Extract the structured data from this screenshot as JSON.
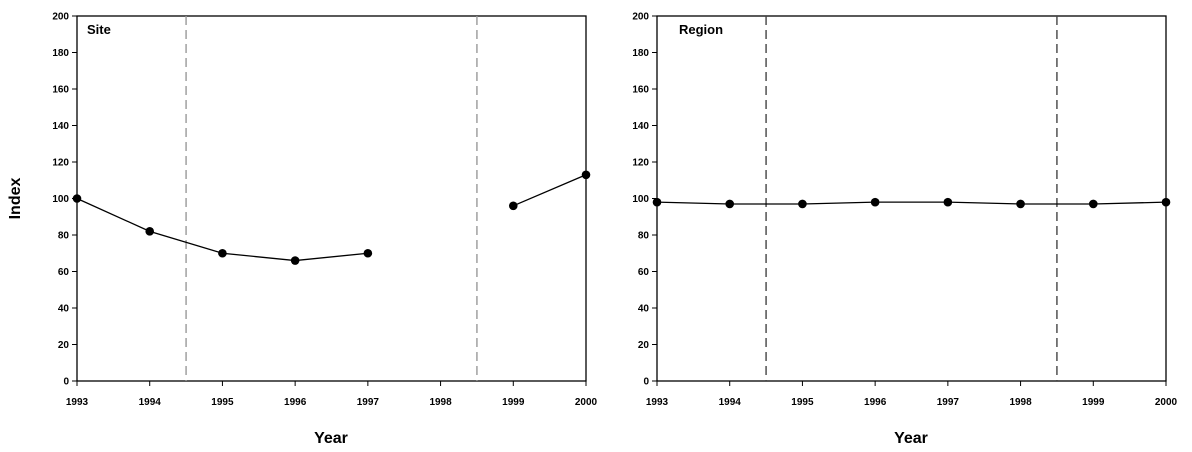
{
  "chart_data": [
    {
      "type": "line",
      "title": "",
      "panel_label": "Site",
      "xlabel": "Year",
      "ylabel": "Index",
      "xlim": [
        1993,
        2000
      ],
      "ylim": [
        0,
        200
      ],
      "x_ticks": [
        "1993",
        "1994",
        "1995",
        "1996",
        "1997",
        "1998",
        "1999",
        "2000"
      ],
      "y_ticks": [
        "0",
        "20",
        "40",
        "60",
        "80",
        "100",
        "120",
        "140",
        "160",
        "180",
        "200"
      ],
      "grid": false,
      "legend": "none",
      "reference_lines_x": [
        1994.5,
        1998.5
      ],
      "series": [
        {
          "points": [
            {
              "x": 1993,
              "y": 100
            },
            {
              "x": 1994,
              "y": 82
            },
            {
              "x": 1995,
              "y": 70
            },
            {
              "x": 1996,
              "y": 66
            },
            {
              "x": 1997,
              "y": 70
            },
            {
              "x": 1999,
              "y": 96
            },
            {
              "x": 2000,
              "y": 113
            }
          ],
          "segments": [
            [
              1993,
              1994,
              1995,
              1996,
              1997
            ],
            [
              1999,
              2000
            ]
          ]
        }
      ]
    },
    {
      "type": "line",
      "title": "",
      "panel_label": "Region",
      "xlabel": "Year",
      "ylabel": "",
      "xlim": [
        1993,
        2000
      ],
      "ylim": [
        0,
        200
      ],
      "x_ticks": [
        "1993",
        "1994",
        "1995",
        "1996",
        "1997",
        "1998",
        "1999",
        "2000"
      ],
      "y_ticks": [
        "0",
        "20",
        "40",
        "60",
        "80",
        "100",
        "120",
        "140",
        "160",
        "180",
        "200"
      ],
      "grid": false,
      "legend": "none",
      "reference_lines_x": [
        1994.5,
        1998.5
      ],
      "series": [
        {
          "points": [
            {
              "x": 1993,
              "y": 98
            },
            {
              "x": 1994,
              "y": 97
            },
            {
              "x": 1995,
              "y": 97
            },
            {
              "x": 1996,
              "y": 98
            },
            {
              "x": 1997,
              "y": 98
            },
            {
              "x": 1998,
              "y": 97
            },
            {
              "x": 1999,
              "y": 97
            },
            {
              "x": 2000,
              "y": 98
            }
          ],
          "segments": [
            [
              1993,
              1994,
              1995,
              1996,
              1997,
              1998,
              1999,
              2000
            ]
          ]
        }
      ]
    }
  ],
  "colors": {
    "line": "#000000",
    "marker": "#000000",
    "reference_line_site": "#999999",
    "reference_line_region": "#444444",
    "axis": "#000000"
  }
}
